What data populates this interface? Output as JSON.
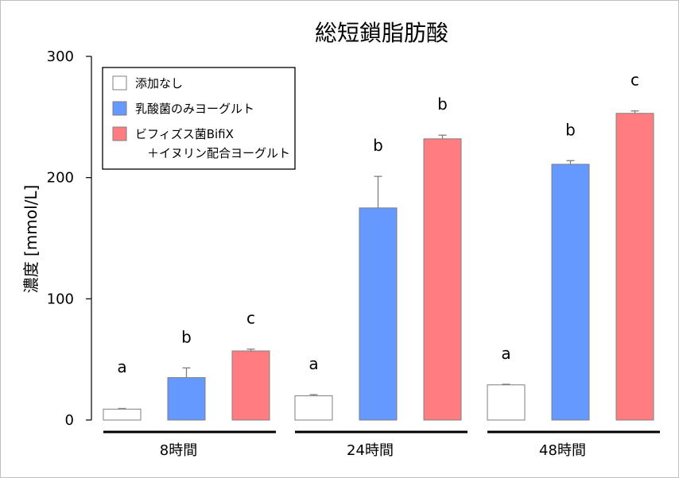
{
  "chart_data": {
    "type": "bar",
    "title": "総短鎖脂肪酸",
    "ylabel": "濃度 [mmol/L]",
    "xlabel": "",
    "ylim": [
      0,
      300
    ],
    "yticks": [
      "0",
      "100",
      "200",
      "300"
    ],
    "categories": [
      "8時間",
      "24時間",
      "48時間"
    ],
    "legend_position": "top-left",
    "grid": false,
    "series": [
      {
        "name": "添加なし",
        "color": "#ffffff",
        "values": [
          9,
          20,
          29
        ],
        "errors": [
          0.5,
          1,
          0.5
        ],
        "letters": [
          "a",
          "a",
          "a"
        ]
      },
      {
        "name": "乳酸菌のみヨーグルト",
        "color": "#6699ff",
        "values": [
          35,
          175,
          211
        ],
        "errors": [
          8,
          26,
          3
        ],
        "letters": [
          "b",
          "b",
          "b"
        ]
      },
      {
        "name": "ビフィズス菌BifiX\n　＋イヌリン配合ヨーグルト",
        "color": "#ff7c80",
        "values": [
          57,
          232,
          253
        ],
        "errors": [
          1.5,
          3,
          2
        ],
        "letters": [
          "c",
          "b",
          "c"
        ]
      }
    ]
  }
}
